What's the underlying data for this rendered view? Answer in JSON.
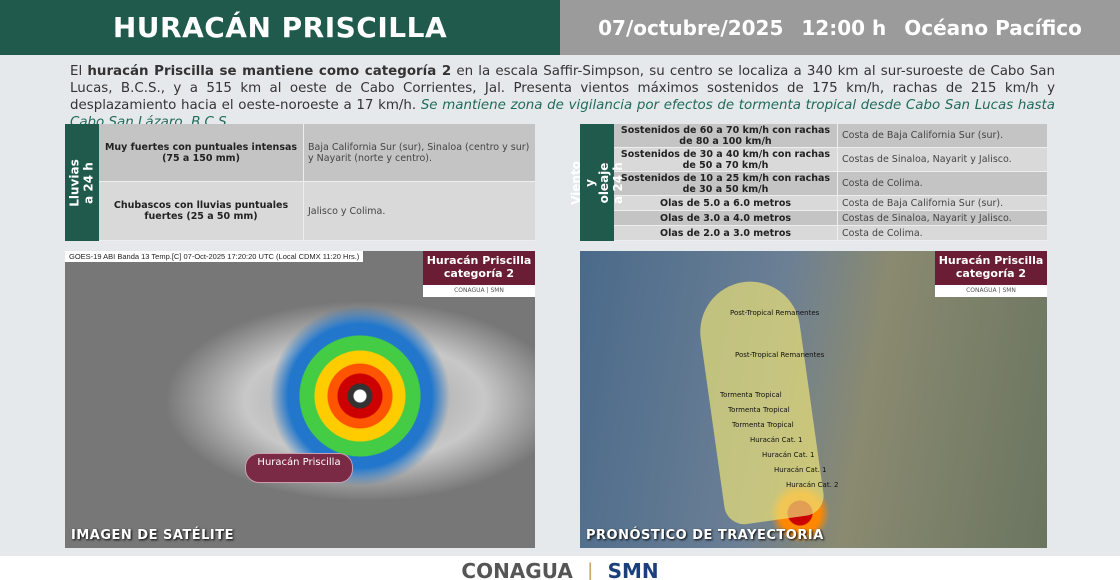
{
  "header": {
    "title": "HURACÁN PRISCILLA",
    "date": "07/octubre/2025",
    "time": "12:00 h",
    "region": "Océano Pacífico"
  },
  "intro": {
    "p1": "El ",
    "b1": "huracán Priscilla se mantiene como categoría 2",
    "p2": " en la escala Saffir-Simpson, su centro se localiza a 340 km al sur-suroeste de Cabo San Lucas, B.C.S., y a 515 km al oeste de Cabo Corrientes, Jal. Presenta vientos máximos sostenidos de 175 km/h, rachas de 215 km/h y desplazamiento hacia el oeste-noroeste a 17 km/h. ",
    "i1": "Se mantiene zona de vigilancia por efectos de tormenta tropical desde Cabo San Lucas hasta Cabo San Lázaro, B.C.S."
  },
  "rain": {
    "label": "Lluvias a 24 h",
    "rows": [
      {
        "k": "Muy fuertes con puntuales intensas (75 a 150 mm)",
        "v": "Baja California Sur (sur), Sinaloa (centro y sur) y Nayarit (norte y centro)."
      },
      {
        "k": "Chubascos con lluvias puntuales fuertes (25 a 50 mm)",
        "v": "Jalisco y Colima."
      }
    ]
  },
  "wind": {
    "label": "Viento y oleaje a 24 h",
    "rows": [
      {
        "k": "Sostenidos de 60 a 70 km/h con rachas de 80 a 100 km/h",
        "v": "Costa de Baja California Sur (sur)."
      },
      {
        "k": "Sostenidos de 30 a 40 km/h con rachas de 50 a 70 km/h",
        "v": "Costas de Sinaloa, Nayarit y Jalisco."
      },
      {
        "k": "Sostenidos de 10 a 25 km/h con rachas de 30 a 50 km/h",
        "v": "Costa de Colima."
      },
      {
        "k": "Olas de 5.0 a 6.0 metros",
        "v": "Costa de Baja California Sur (sur)."
      },
      {
        "k": "Olas de 3.0 a 4.0 metros",
        "v": "Costas de Sinaloa, Nayarit y Jalisco."
      },
      {
        "k": "Olas de 2.0 a 3.0 metros",
        "v": "Costa de Colima."
      }
    ]
  },
  "satellite": {
    "goes": "GOES-19 ABI Banda 13 Temp.[C] 07-Oct-2025 17:20:20 UTC (Local CDMX  11:20 Hrs.)",
    "badge": "Huracán Priscilla categoría 2",
    "logos": "CONAGUA | SMN",
    "storm_label": "Huracán Priscilla",
    "caption": "IMAGEN DE SATÉLITE"
  },
  "track": {
    "badge": "Huracán Priscilla categoría 2",
    "logos": "CONAGUA | SMN",
    "labels": [
      "Post-Tropical Remanentes",
      "Post-Tropical Remanentes",
      "Tormenta Tropical",
      "Tormenta Tropical",
      "Tormenta Tropical",
      "Huracán Cat. 1",
      "Huracán Cat. 1",
      "Huracán Cat. 1",
      "Huracán Cat. 2"
    ],
    "caption": "PRONÓSTICO DE TRAYECTORIA"
  },
  "footer": {
    "conagua": "CONAGUA",
    "sep": "|",
    "smn": "SMN"
  }
}
